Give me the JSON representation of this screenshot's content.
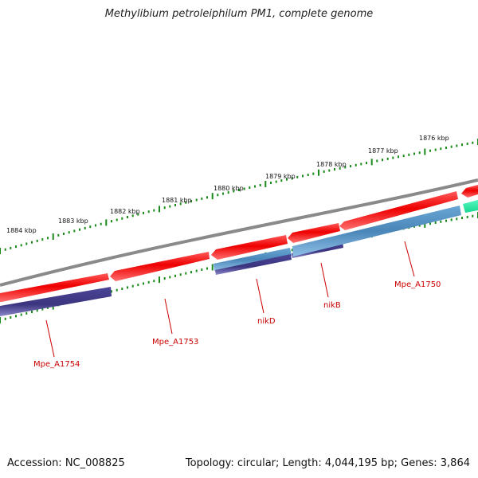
{
  "title": "Methylibium petroleiphilum PM1, complete genome",
  "footer": {
    "accession": "Accession: NC_008825",
    "summary": "Topology: circular; Length: 4,044,195 bp; Genes: 3,864"
  },
  "colors": {
    "backbone": "#7a7a7a",
    "forward_gene": "#ee0000",
    "reverse_gene": "#3b3580",
    "reverse_gene_light": "#4a86b8",
    "teal_gene": "#22e8a8",
    "tick": "#1a8a1a",
    "label": "#cc0000"
  },
  "scale_labels": [
    "1876 kbp",
    "1877 kbp",
    "1878 kbp",
    "1879 kbp",
    "1880 kbp",
    "1881 kbp",
    "1882 kbp",
    "1883 kbp",
    "1884 kbp"
  ],
  "gene_labels": [
    {
      "name": "Mpe_A1750"
    },
    {
      "name": "nikB"
    },
    {
      "name": "nikD"
    },
    {
      "name": "Mpe_A1753"
    },
    {
      "name": "Mpe_A1754"
    }
  ]
}
